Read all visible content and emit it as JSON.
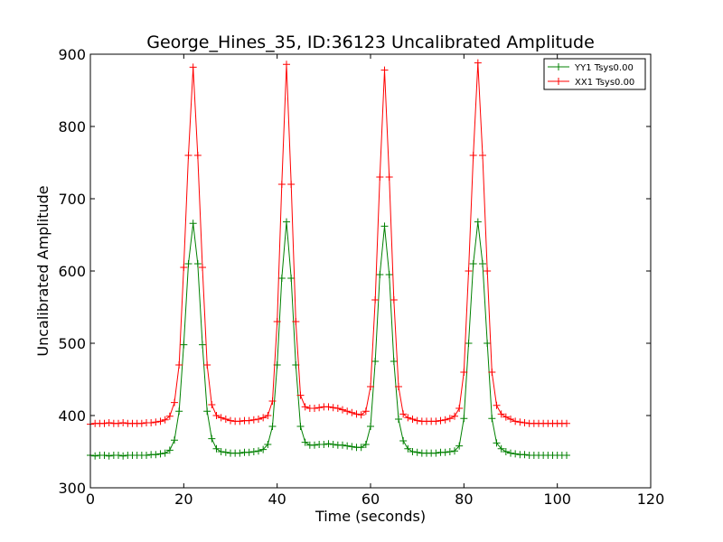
{
  "chart_data": {
    "type": "line",
    "title": "George_Hines_35, ID:36123 Uncalibrated Amplitude",
    "xlabel": "Time (seconds)",
    "ylabel": "Uncalibrated Amplitude",
    "xlim": [
      0,
      120
    ],
    "ylim": [
      300,
      900
    ],
    "xticks": [
      0,
      20,
      40,
      60,
      80,
      100,
      120
    ],
    "yticks": [
      300,
      400,
      500,
      600,
      700,
      800,
      900
    ],
    "grid": false,
    "legend_position": "top-right",
    "marker": "+",
    "x": [
      0,
      1,
      2,
      3,
      4,
      5,
      6,
      7,
      8,
      9,
      10,
      11,
      12,
      13,
      14,
      15,
      16,
      17,
      18,
      19,
      20,
      21,
      22,
      23,
      24,
      25,
      26,
      27,
      28,
      29,
      30,
      31,
      32,
      33,
      34,
      35,
      36,
      37,
      38,
      39,
      40,
      41,
      42,
      43,
      44,
      45,
      46,
      47,
      48,
      49,
      50,
      51,
      52,
      53,
      54,
      55,
      56,
      57,
      58,
      59,
      60,
      61,
      62,
      63,
      64,
      65,
      66,
      67,
      68,
      69,
      70,
      71,
      72,
      73,
      74,
      75,
      76,
      77,
      78,
      79,
      80,
      81,
      82,
      83,
      84,
      85,
      86,
      87,
      88,
      89,
      90,
      91,
      92,
      93,
      94,
      95,
      96,
      97,
      98,
      99,
      100,
      101,
      102
    ],
    "series": [
      {
        "name": "YY1 Tsys0.00",
        "color": "#008000",
        "values": [
          345,
          344,
          345,
          345,
          344,
          345,
          345,
          344,
          345,
          345,
          345,
          345,
          345,
          346,
          346,
          347,
          348,
          352,
          366,
          406,
          498,
          610,
          666,
          610,
          498,
          406,
          368,
          354,
          350,
          349,
          348,
          348,
          348,
          349,
          349,
          350,
          351,
          353,
          360,
          385,
          470,
          590,
          668,
          590,
          470,
          385,
          363,
          359,
          359,
          360,
          360,
          361,
          360,
          359,
          359,
          358,
          357,
          356,
          356,
          360,
          385,
          475,
          595,
          662,
          595,
          475,
          395,
          365,
          354,
          350,
          349,
          348,
          348,
          348,
          348,
          349,
          349,
          350,
          351,
          358,
          396,
          500,
          610,
          668,
          610,
          500,
          396,
          362,
          354,
          350,
          348,
          347,
          346,
          346,
          345,
          345,
          345,
          345,
          345,
          345,
          345,
          345,
          345
        ]
      },
      {
        "name": "XX1 Tsys0.00",
        "color": "#ff0000",
        "values": [
          388,
          389,
          389,
          389,
          390,
          389,
          389,
          390,
          389,
          389,
          389,
          389,
          390,
          390,
          391,
          392,
          394,
          399,
          418,
          470,
          605,
          760,
          882,
          760,
          605,
          470,
          415,
          400,
          397,
          395,
          393,
          392,
          392,
          393,
          393,
          394,
          395,
          397,
          400,
          420,
          530,
          720,
          886,
          720,
          530,
          428,
          412,
          410,
          410,
          411,
          412,
          412,
          411,
          410,
          408,
          406,
          404,
          402,
          401,
          406,
          440,
          560,
          730,
          878,
          730,
          560,
          440,
          402,
          397,
          395,
          393,
          392,
          392,
          392,
          392,
          393,
          394,
          396,
          399,
          410,
          460,
          600,
          760,
          888,
          760,
          600,
          460,
          414,
          402,
          398,
          395,
          392,
          391,
          390,
          389,
          389,
          389,
          389,
          389,
          389,
          389,
          389,
          389
        ]
      }
    ]
  }
}
